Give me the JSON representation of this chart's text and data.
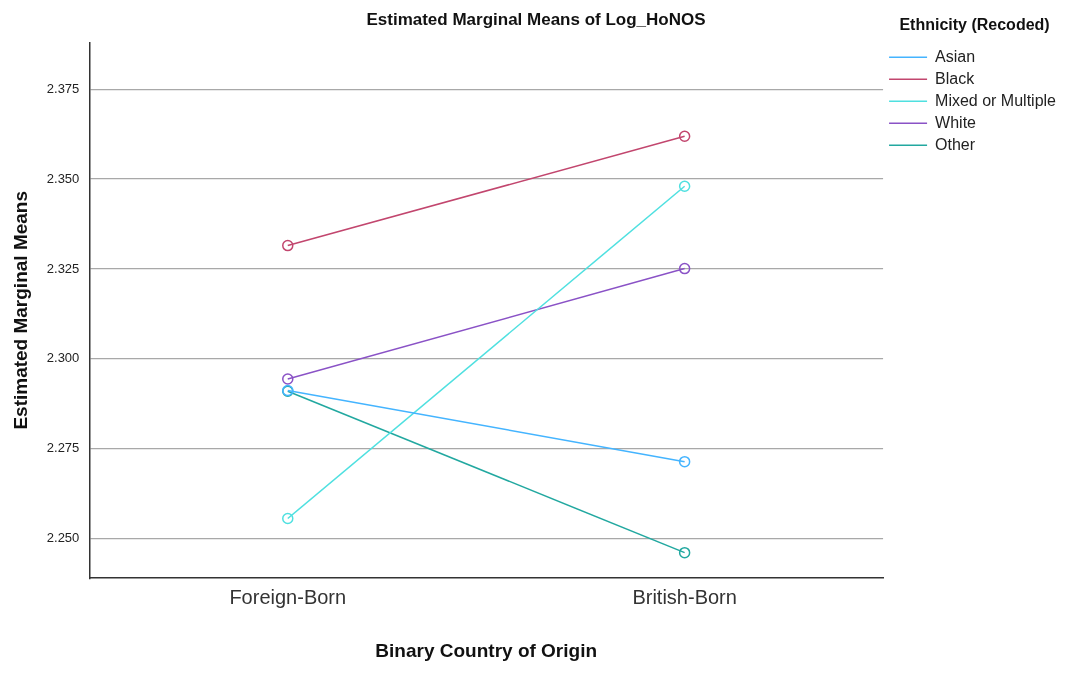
{
  "chart_data": {
    "type": "line",
    "title": "Estimated Marginal Means of Log_HoNOS",
    "xlabel": "Binary Country of Origin",
    "ylabel": "Estimated Marginal Means",
    "legend_title": "Ethnicity (Recoded)",
    "categories": [
      "Foreign-Born",
      "British-Born"
    ],
    "series": [
      {
        "name": "Asian",
        "color": "#44b4ff",
        "values": [
          2.2912,
          2.2714
        ]
      },
      {
        "name": "Black",
        "color": "#c2466e",
        "values": [
          2.3315,
          2.3619
        ]
      },
      {
        "name": "Mixed or Multiple",
        "color": "#4fe0e0",
        "values": [
          2.2556,
          2.348
        ]
      },
      {
        "name": "White",
        "color": "#8a52c6",
        "values": [
          2.2944,
          2.3251
        ]
      },
      {
        "name": "Other",
        "color": "#22a8a0",
        "values": [
          2.291,
          2.2461
        ]
      }
    ],
    "ylim": [
      2.239,
      2.388
    ],
    "yticks": [
      {
        "value": 2.25,
        "label": "2.250"
      },
      2.275,
      {
        "value": 2.3,
        "label": "2.300"
      },
      2.325,
      {
        "value": 2.35,
        "label": "2.350"
      },
      2.375
    ],
    "grid": "y",
    "legend": "top right",
    "marker": "circle",
    "line_style": "solid"
  }
}
